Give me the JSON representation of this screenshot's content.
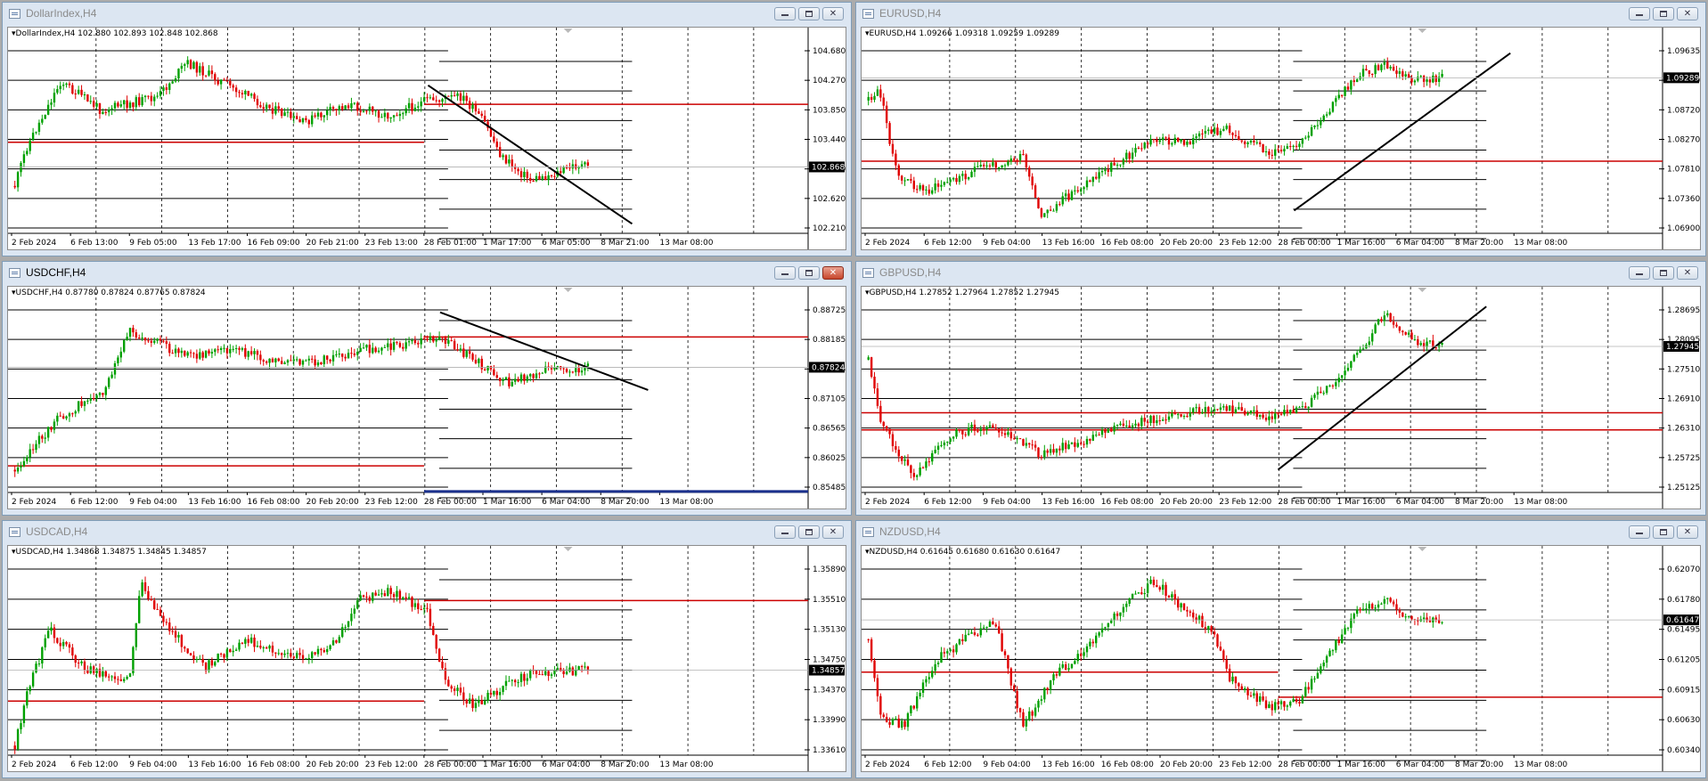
{
  "windows": [
    {
      "id": "dxy",
      "title": "DollarIndex,H4",
      "active": false,
      "info": "DollarIndex,H4  102.880 102.893 102.848 102.868",
      "y_ticks": [
        "104.680",
        "104.270",
        "103.850",
        "103.440",
        "103.030",
        "102.620",
        "102.210"
      ],
      "x_labels": [
        "2 Feb 2024",
        "6 Feb 13:00",
        "9 Feb 05:00",
        "13 Feb 17:00",
        "16 Feb 09:00",
        "20 Feb 21:00",
        "23 Feb 13:00",
        "28 Feb 01:00",
        "1 Mar 17:00",
        "6 Mar 05:00",
        "8 Mar 21:00",
        "13 Mar 08:00"
      ],
      "price": "102.868"
    },
    {
      "id": "eurusd",
      "title": "EURUSD,H4",
      "active": false,
      "info": "EURUSD,H4  1.09266 1.09318 1.09259 1.09289",
      "y_ticks": [
        "1.09635",
        "1.09180",
        "1.08720",
        "1.08270",
        "1.07810",
        "1.07360",
        "1.06900"
      ],
      "x_labels": [
        "2 Feb 2024",
        "6 Feb 12:00",
        "9 Feb 04:00",
        "13 Feb 16:00",
        "16 Feb 08:00",
        "20 Feb 20:00",
        "23 Feb 12:00",
        "28 Feb 00:00",
        "1 Mar 16:00",
        "6 Mar 04:00",
        "8 Mar 20:00",
        "13 Mar 08:00"
      ],
      "price": "1.09289"
    },
    {
      "id": "usdchf",
      "title": "USDCHF,H4",
      "active": true,
      "info": "USDCHF,H4  0.87780 0.87824 0.87765 0.87824",
      "y_ticks": [
        "0.88725",
        "0.88185",
        "0.87645",
        "0.87105",
        "0.86565",
        "0.86025",
        "0.85485"
      ],
      "x_labels": [
        "2 Feb 2024",
        "6 Feb 12:00",
        "9 Feb 04:00",
        "13 Feb 16:00",
        "16 Feb 08:00",
        "20 Feb 20:00",
        "23 Feb 12:00",
        "28 Feb 00:00",
        "1 Mar 16:00",
        "6 Mar 04:00",
        "8 Mar 20:00",
        "13 Mar 08:00"
      ],
      "price": "0.87824"
    },
    {
      "id": "gbpusd",
      "title": "GBPUSD,H4",
      "active": false,
      "info": "GBPUSD,H4  1.27852 1.27964 1.27852 1.27945",
      "y_ticks": [
        "1.28695",
        "1.28095",
        "1.27510",
        "1.26910",
        "1.26310",
        "1.25725",
        "1.25125"
      ],
      "x_labels": [
        "2 Feb 2024",
        "6 Feb 12:00",
        "9 Feb 04:00",
        "13 Feb 16:00",
        "16 Feb 08:00",
        "20 Feb 20:00",
        "23 Feb 12:00",
        "28 Feb 00:00",
        "1 Mar 16:00",
        "6 Mar 04:00",
        "8 Mar 20:00",
        "13 Mar 08:00"
      ],
      "price": "1.27945"
    },
    {
      "id": "usdcad",
      "title": "USDCAD,H4",
      "active": false,
      "info": "USDCAD,H4  1.34868 1.34875 1.34845 1.34857",
      "y_ticks": [
        "1.35890",
        "1.35510",
        "1.35130",
        "1.34750",
        "1.34370",
        "1.33990",
        "1.33610"
      ],
      "x_labels": [
        "2 Feb 2024",
        "6 Feb 12:00",
        "9 Feb 04:00",
        "13 Feb 16:00",
        "16 Feb 08:00",
        "20 Feb 20:00",
        "23 Feb 12:00",
        "28 Feb 00:00",
        "1 Mar 16:00",
        "6 Mar 04:00",
        "8 Mar 20:00",
        "13 Mar 08:00"
      ],
      "price": "1.34857"
    },
    {
      "id": "nzdusd",
      "title": "NZDUSD,H4",
      "active": false,
      "info": "NZDUSD,H4  0.61645 0.61680 0.61630 0.61647",
      "y_ticks": [
        "0.62070",
        "0.61780",
        "0.61495",
        "0.61205",
        "0.60915",
        "0.60630",
        "0.60340"
      ],
      "x_labels": [
        "2 Feb 2024",
        "6 Feb 12:00",
        "9 Feb 04:00",
        "13 Feb 16:00",
        "16 Feb 08:00",
        "20 Feb 20:00",
        "23 Feb 12:00",
        "28 Feb 00:00",
        "1 Mar 16:00",
        "6 Mar 04:00",
        "8 Mar 20:00",
        "13 Mar 08:00"
      ],
      "price": "0.61647"
    }
  ],
  "colors": {
    "bull": "#00a000",
    "bear": "#e00000",
    "level": "#cc0000",
    "trend": "#000000",
    "price_tag": "#000000",
    "window_bg": "#dce6f2"
  },
  "icons": {
    "minimize": "minimize-icon",
    "maximize": "maximize-icon",
    "close": "close-icon",
    "window": "chart-window-icon"
  }
}
